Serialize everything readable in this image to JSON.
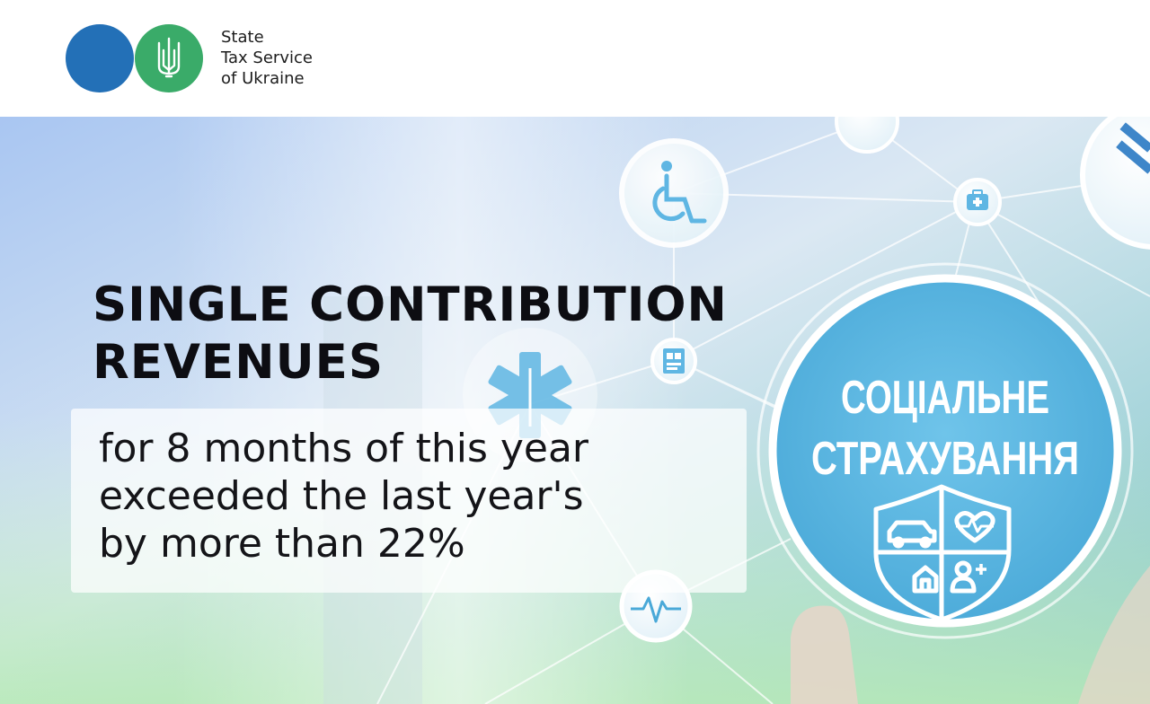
{
  "header": {
    "org_name_lines": [
      "State",
      "Tax Service",
      "of Ukraine"
    ]
  },
  "banner": {
    "title_lines": [
      "SINGLE CONTRIBUTION",
      "REVENUES"
    ],
    "subtitle_lines": [
      "for 8 months of this year",
      "exceeded the last year's",
      "by more than 22%"
    ],
    "illustration": {
      "badge_lines": [
        "СОЦІАЛЬНЕ",
        "СТРАХУВАННЯ"
      ],
      "icons": [
        "wheelchair-icon",
        "first-aid-kit-icon",
        "medical-star-icon",
        "id-card-icon",
        "heartbeat-icon",
        "car-icon",
        "heart-pulse-icon",
        "house-icon",
        "add-person-icon"
      ]
    }
  },
  "colors": {
    "logo_blue": "#2370b7",
    "logo_green": "#3aab69",
    "badge_blue": "#5bb8e3",
    "title_text": "#0d0d12"
  }
}
